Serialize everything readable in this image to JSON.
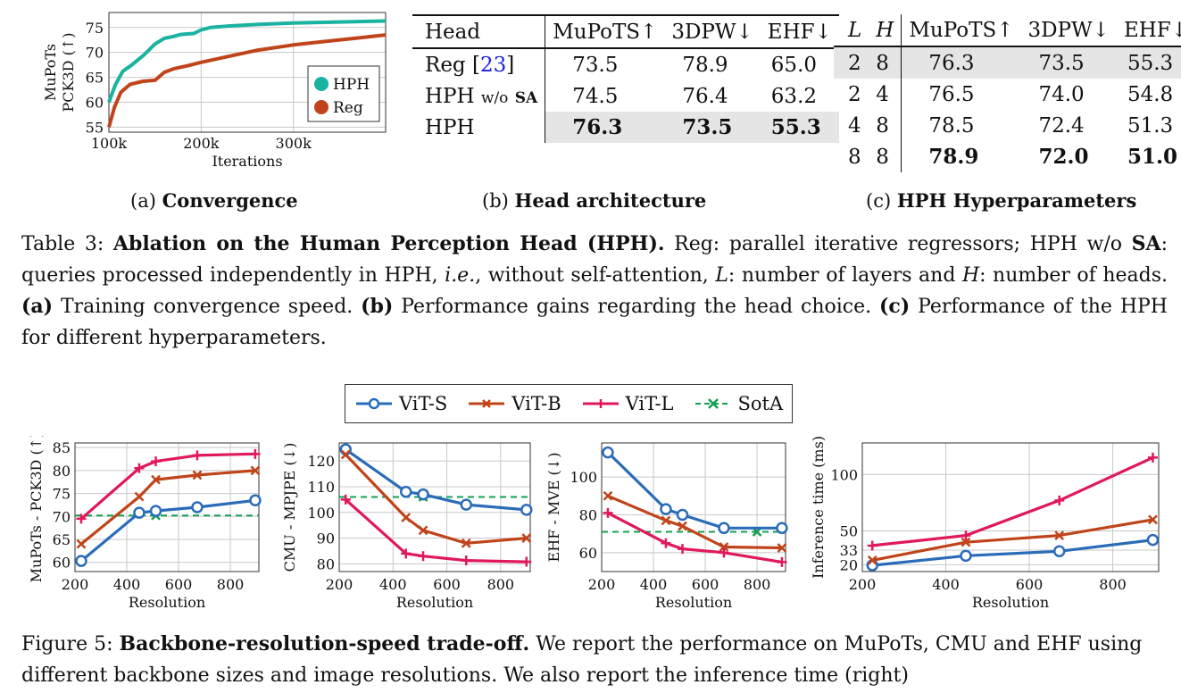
{
  "table3": {
    "a": {
      "label": "(a)",
      "title": "Convergence",
      "chart_data": {
        "type": "line",
        "xlabel": "Iterations",
        "ylabel_line1": "MuPoTs",
        "ylabel_line2": "PCK3D (↑)",
        "xlim": [
          100,
          400
        ],
        "ylim": [
          54,
          78
        ],
        "xticks": [
          "100k",
          "200k",
          "300k"
        ],
        "yticks": [
          "55",
          "60",
          "65",
          "70",
          "75"
        ],
        "series": [
          {
            "name": "HPH",
            "color": "#1ab2a0",
            "x": [
              100,
              107,
              115,
              125,
              138,
              150,
              160,
              170,
              178,
              185,
              192,
              200,
              210,
              230,
              260,
              300,
              350,
              400
            ],
            "y": [
              60.0,
              63.5,
              66.2,
              67.5,
              69.5,
              71.7,
              72.8,
              73.2,
              73.6,
              73.7,
              73.8,
              74.5,
              75.0,
              75.3,
              75.6,
              75.9,
              76.1,
              76.3
            ]
          },
          {
            "name": "Reg",
            "color": "#c0441a",
            "x": [
              100,
              106,
              113,
              123,
              137,
              150,
              160,
              170,
              185,
              200,
              230,
              260,
              300,
              330,
              360,
              400
            ],
            "y": [
              55.0,
              59.0,
              62.0,
              63.6,
              64.2,
              64.4,
              66.0,
              66.7,
              67.3,
              68.0,
              69.2,
              70.4,
              71.5,
              72.1,
              72.7,
              73.5
            ]
          }
        ]
      }
    },
    "b": {
      "label": "(b)",
      "title": "Head architecture",
      "headers": [
        "Head",
        "MuPoTS↑",
        "3DPW↓",
        "EHF↓"
      ],
      "rows": [
        {
          "head": "Reg",
          "cite": "23",
          "values": [
            "73.5",
            "78.9",
            "65.0"
          ]
        },
        {
          "head": "HPH",
          "sub": "w/o",
          "sub_bold": "SA",
          "values": [
            "74.5",
            "76.4",
            "63.2"
          ]
        },
        {
          "head": "HPH",
          "values": [
            "76.3",
            "73.5",
            "55.3"
          ]
        }
      ]
    },
    "c": {
      "label": "(c)",
      "title": "HPH Hyperparameters",
      "headers": [
        "L",
        "H",
        "MuPoTS↑",
        "3DPW↓",
        "EHF↓"
      ],
      "rows": [
        [
          "2",
          "8",
          "76.3",
          "73.5",
          "55.3"
        ],
        [
          "2",
          "4",
          "76.5",
          "74.0",
          "54.8"
        ],
        [
          "4",
          "8",
          "78.5",
          "72.4",
          "51.3"
        ],
        [
          "8",
          "8",
          "78.9",
          "72.0",
          "51.0"
        ]
      ]
    },
    "caption": {
      "label": "Table 3:",
      "title": "Ablation on the Human Perception Head (HPH).",
      "t1": " Reg: parallel iterative regressors; HPH w/o ",
      "sa": "SA",
      "t2": ": queries processed independently in HPH, ",
      "ie": "i.e.",
      "t3": ", without self-attention, ",
      "L": "L",
      "t4": ": number of layers and ",
      "H": "H",
      "t5": ": number of heads. ",
      "a": "(a)",
      "ta": " Training convergence speed. ",
      "b": "(b)",
      "tb": " Performance gains regarding the head choice. ",
      "c": "(c)",
      "tc": " Performance of the HPH for different hyperparameters."
    }
  },
  "figure5": {
    "legend": [
      {
        "name": "ViT-S",
        "color": "#2a6cb9",
        "marker": "circle"
      },
      {
        "name": "ViT-B",
        "color": "#c0441a",
        "marker": "x"
      },
      {
        "name": "ViT-L",
        "color": "#e0185c",
        "marker": "plus"
      },
      {
        "name": "SotA",
        "color": "#14a050",
        "marker": "x",
        "dashed": true
      }
    ],
    "chart_data": [
      {
        "type": "line",
        "xlabel": "Resolution",
        "ylabel": "MuPoTs - PCK3D (↑)",
        "xlim": [
          200,
          910
        ],
        "ylim": [
          58,
          86
        ],
        "xticks": [
          200,
          400,
          600,
          800
        ],
        "yticks": [
          60,
          65,
          70,
          75,
          80,
          85
        ],
        "x": [
          224,
          448,
          512,
          672,
          896
        ],
        "series": [
          {
            "name": "ViT-S",
            "values": [
              60.3,
              70.8,
              71.2,
              72.0,
              73.5
            ]
          },
          {
            "name": "ViT-B",
            "values": [
              64.0,
              74.3,
              78.0,
              79.0,
              80.0
            ]
          },
          {
            "name": "ViT-L",
            "values": [
              69.5,
              80.5,
              82.0,
              83.3,
              83.6
            ]
          }
        ],
        "sota": {
          "value": 70.2,
          "x": 512
        }
      },
      {
        "type": "line",
        "xlabel": "Resolution",
        "ylabel": "CMU - MPJPE (↓)",
        "xlim": [
          200,
          910
        ],
        "ylim": [
          77,
          127
        ],
        "xticks": [
          200,
          400,
          600,
          800
        ],
        "yticks": [
          80,
          90,
          100,
          110,
          120
        ],
        "x": [
          224,
          448,
          512,
          672,
          896
        ],
        "series": [
          {
            "name": "ViT-S",
            "values": [
              124.5,
              108.0,
              107.0,
              103.0,
              101.0
            ]
          },
          {
            "name": "ViT-B",
            "values": [
              122.5,
              98.0,
              93.0,
              88.0,
              90.0
            ]
          },
          {
            "name": "ViT-L",
            "values": [
              105.0,
              84.0,
              83.0,
              81.3,
              80.8
            ]
          }
        ],
        "sota": {
          "value": 106.0,
          "x": 512
        }
      },
      {
        "type": "line",
        "xlabel": "Resolution",
        "ylabel": "EHF - MVE (↓)",
        "xlim": [
          200,
          910
        ],
        "ylim": [
          50,
          118
        ],
        "xticks": [
          200,
          400,
          600,
          800
        ],
        "yticks": [
          60,
          80,
          100
        ],
        "x": [
          224,
          448,
          512,
          672,
          896
        ],
        "series": [
          {
            "name": "ViT-S",
            "values": [
              113.0,
              83.0,
              80.0,
              73.0,
              73.0
            ]
          },
          {
            "name": "ViT-B",
            "values": [
              90.0,
              77.0,
              74.0,
              63.0,
              62.5
            ]
          },
          {
            "name": "ViT-L",
            "values": [
              81.0,
              65.0,
              62.0,
              60.0,
              55.0
            ]
          }
        ],
        "sota": {
          "value": 71.0,
          "x": 800
        }
      },
      {
        "type": "line",
        "xlabel": "Resolution",
        "ylabel": "Inference time (ms)",
        "xlim": [
          200,
          910
        ],
        "ylim": [
          14,
          128
        ],
        "xticks": [
          200,
          400,
          600,
          800
        ],
        "yticks": [
          20,
          33,
          50,
          100
        ],
        "x": [
          224,
          448,
          672,
          896
        ],
        "series": [
          {
            "name": "ViT-S",
            "values": [
              19.5,
              28.0,
              32.0,
              42.0
            ]
          },
          {
            "name": "ViT-B",
            "values": [
              24.0,
              40.0,
              46.0,
              60.0
            ]
          },
          {
            "name": "ViT-L",
            "values": [
              37.0,
              46.0,
              77.0,
              115.0
            ]
          }
        ]
      }
    ],
    "caption": {
      "label": "Figure 5:",
      "title": "Backbone-resolution-speed trade-off.",
      "text": " We report the performance on MuPoTs, CMU and EHF using different backbone sizes and image resolutions. We also report the inference time (right)"
    }
  }
}
